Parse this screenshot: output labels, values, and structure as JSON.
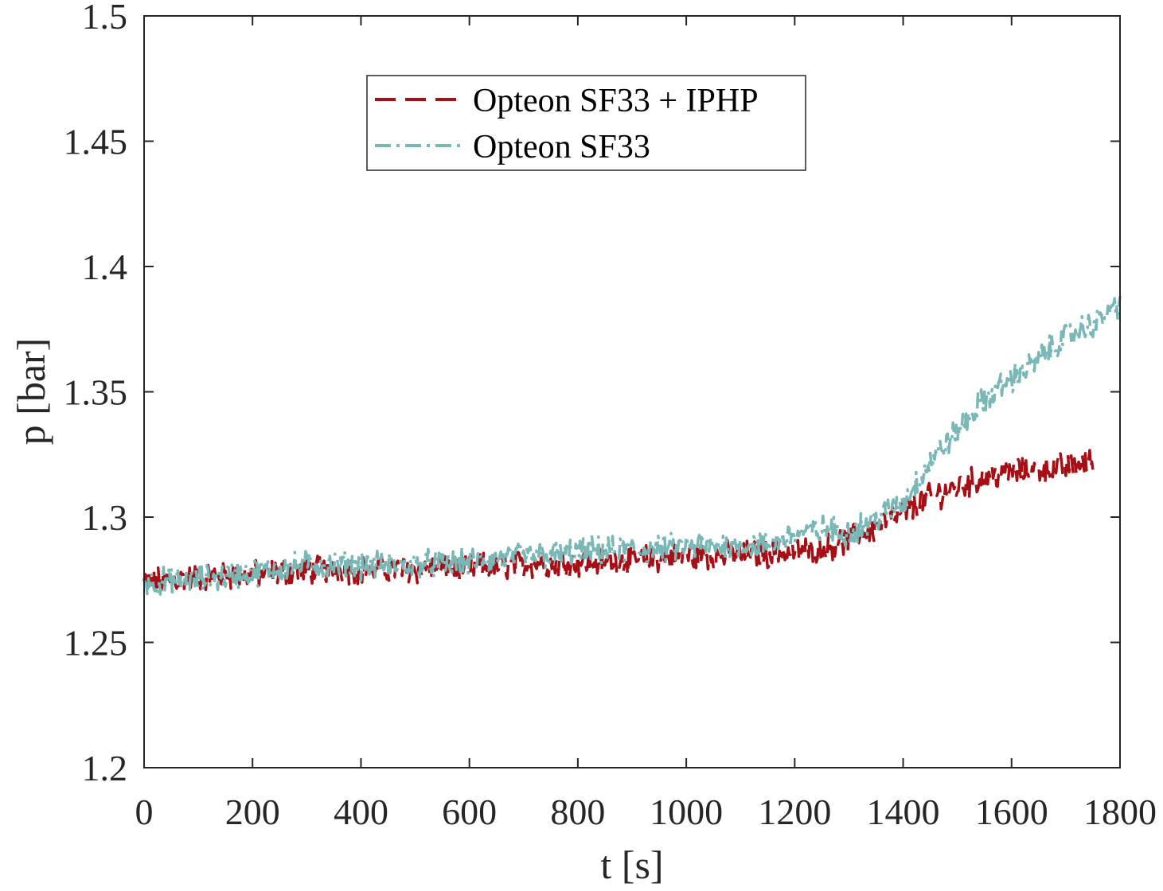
{
  "chart_data": {
    "type": "line",
    "title": "",
    "xlabel": "t [s]",
    "ylabel": "p [bar]",
    "xlim": [
      0,
      1800
    ],
    "ylim": [
      1.2,
      1.5
    ],
    "xticks": [
      0,
      200,
      400,
      600,
      800,
      1000,
      1200,
      1400,
      1600,
      1800
    ],
    "xtick_labels": [
      "0",
      "200",
      "400",
      "600",
      "800",
      "1000",
      "1200",
      "1400",
      "1600",
      "1800"
    ],
    "yticks": [
      1.2,
      1.25,
      1.3,
      1.35,
      1.4,
      1.45,
      1.5
    ],
    "ytick_labels": [
      "1.2",
      "1.25",
      "1.3",
      "1.35",
      "1.4",
      "1.45",
      "1.5"
    ],
    "grid": false,
    "legend_position": "top-center",
    "series": [
      {
        "name": "Opteon SF33 + IPHP",
        "color": "#a50f15",
        "style": "dashed",
        "x": [
          0,
          100,
          200,
          300,
          400,
          500,
          600,
          700,
          800,
          900,
          1000,
          1100,
          1200,
          1250,
          1300,
          1350,
          1400,
          1450,
          1500,
          1550,
          1600,
          1650,
          1700,
          1750
        ],
        "y": [
          1.274,
          1.276,
          1.277,
          1.279,
          1.279,
          1.279,
          1.28,
          1.281,
          1.282,
          1.283,
          1.284,
          1.285,
          1.286,
          1.287,
          1.291,
          1.296,
          1.302,
          1.308,
          1.312,
          1.316,
          1.318,
          1.319,
          1.32,
          1.322
        ]
      },
      {
        "name": "Opteon SF33",
        "color": "#7ab8b8",
        "style": "dashdot",
        "x": [
          0,
          100,
          200,
          300,
          400,
          500,
          600,
          700,
          800,
          900,
          1000,
          1100,
          1150,
          1200,
          1250,
          1300,
          1350,
          1400,
          1450,
          1500,
          1550,
          1600,
          1650,
          1700,
          1750,
          1800
        ],
        "y": [
          1.274,
          1.275,
          1.278,
          1.281,
          1.281,
          1.281,
          1.282,
          1.284,
          1.286,
          1.287,
          1.288,
          1.289,
          1.289,
          1.293,
          1.295,
          1.294,
          1.299,
          1.306,
          1.322,
          1.334,
          1.347,
          1.355,
          1.363,
          1.372,
          1.377,
          1.385
        ]
      }
    ]
  }
}
